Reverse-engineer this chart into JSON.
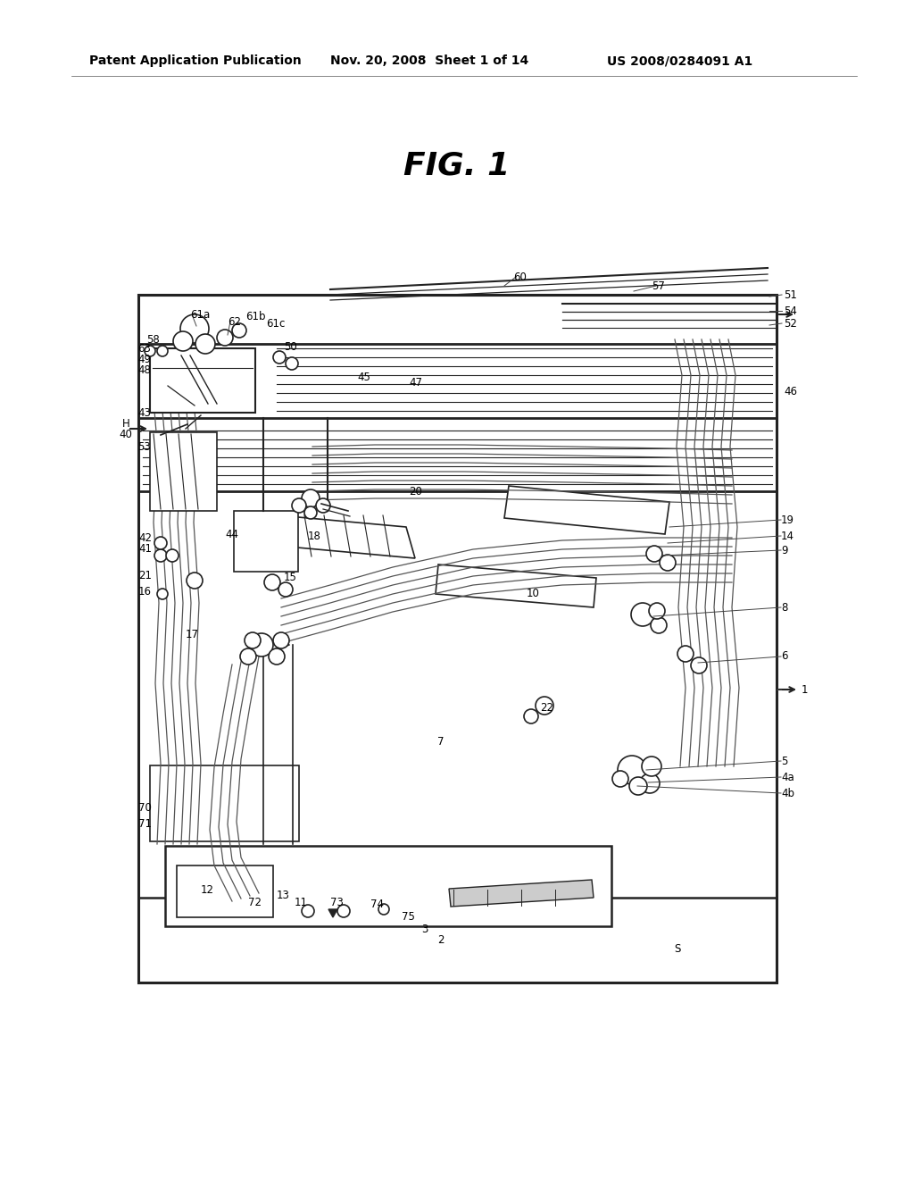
{
  "title": "FIG. 1",
  "header_left": "Patent Application Publication",
  "header_mid": "Nov. 20, 2008  Sheet 1 of 14",
  "header_right": "US 2008/0284091 A1",
  "bg_color": "#ffffff",
  "fg_color": "#000000",
  "lc": "#222222"
}
